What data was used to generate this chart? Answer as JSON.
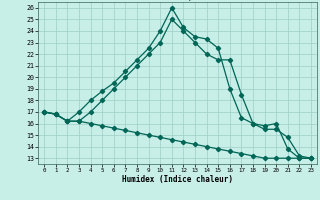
{
  "xlabel": "Humidex (Indice chaleur)",
  "bg_color": "#c8eee8",
  "grid_color": "#9ecfc8",
  "line_color": "#006655",
  "xlim": [
    -0.5,
    23.5
  ],
  "ylim": [
    12.5,
    26.5
  ],
  "xticks": [
    0,
    1,
    2,
    3,
    4,
    5,
    6,
    7,
    8,
    9,
    10,
    11,
    12,
    13,
    14,
    15,
    16,
    17,
    18,
    19,
    20,
    21,
    22,
    23
  ],
  "yticks": [
    13,
    14,
    15,
    16,
    17,
    18,
    19,
    20,
    21,
    22,
    23,
    24,
    25,
    26
  ],
  "line1_x": [
    0,
    1,
    2,
    3,
    4,
    5,
    6,
    7,
    8,
    9,
    10,
    11,
    12,
    13,
    14,
    15,
    16,
    17,
    18,
    19,
    20,
    21,
    22,
    23
  ],
  "line1_y": [
    17,
    16.8,
    16.2,
    17.0,
    18.0,
    18.8,
    19.5,
    20.5,
    21.5,
    22.5,
    24.0,
    26.0,
    24.3,
    23.5,
    23.3,
    22.5,
    19.0,
    16.5,
    16.0,
    15.8,
    16.0,
    13.8,
    13.0,
    13.0
  ],
  "line2_x": [
    0,
    1,
    2,
    3,
    4,
    5,
    6,
    7,
    8,
    9,
    10,
    11,
    12,
    13,
    14,
    15,
    16,
    17,
    18,
    19,
    20,
    21,
    22,
    23
  ],
  "line2_y": [
    17,
    16.8,
    16.2,
    16.2,
    17.0,
    18.0,
    19.0,
    20.0,
    21.0,
    22.0,
    23.0,
    25.0,
    24.0,
    23.0,
    22.0,
    21.5,
    21.5,
    18.5,
    16.0,
    15.5,
    15.5,
    14.8,
    13.2,
    13.0
  ],
  "line3_x": [
    0,
    1,
    2,
    3,
    4,
    5,
    6,
    7,
    8,
    9,
    10,
    11,
    12,
    13,
    14,
    15,
    16,
    17,
    18,
    19,
    20,
    21,
    22,
    23
  ],
  "line3_y": [
    17.0,
    16.8,
    16.2,
    16.2,
    16.0,
    15.8,
    15.6,
    15.4,
    15.2,
    15.0,
    14.8,
    14.6,
    14.4,
    14.2,
    14.0,
    13.8,
    13.6,
    13.4,
    13.2,
    13.0,
    13.0,
    13.0,
    13.0,
    13.0
  ]
}
